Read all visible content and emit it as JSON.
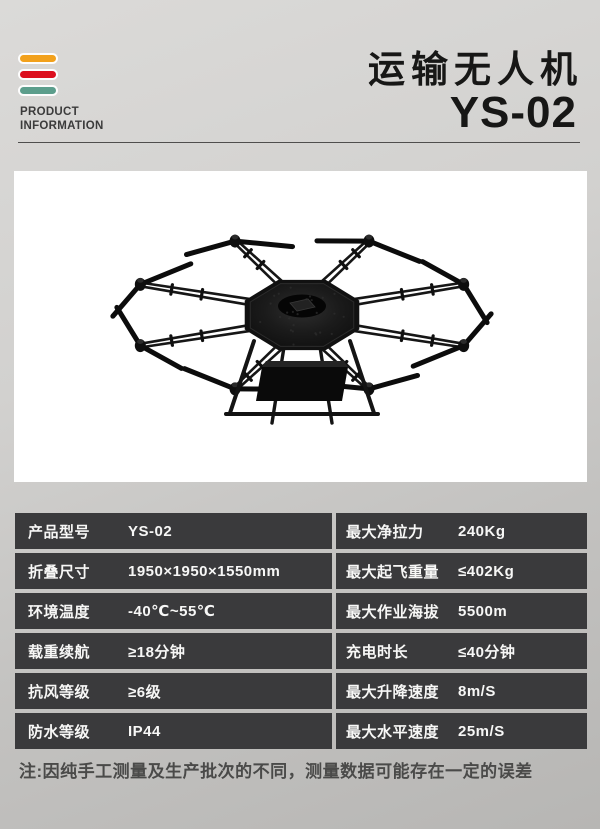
{
  "brand": {
    "line1": "PRODUCT",
    "line2": "INFORMATION",
    "stripe_colors": [
      "#F2A11C",
      "#DC0F1E",
      "#5C9E8C"
    ]
  },
  "header": {
    "title": "运输无人机",
    "model": "YS-02"
  },
  "product_image": {
    "description": "octocopter transport drone, top three-quarter view"
  },
  "spec_table": {
    "rows": [
      {
        "left_label": "产品型号",
        "left_value": "YS-02",
        "right_label": "最大净拉力",
        "right_value": "240Kg"
      },
      {
        "left_label": "折叠尺寸",
        "left_value": "1950×1950×1550mm",
        "right_label": "最大起飞重量",
        "right_value": "≤402Kg"
      },
      {
        "left_label": "环境温度",
        "left_value": "-40℃~55℃",
        "right_label": "最大作业海拔",
        "right_value": "5500m"
      },
      {
        "left_label": "载重续航",
        "left_value": "≥18分钟",
        "right_label": "充电时长",
        "right_value": "≤40分钟"
      },
      {
        "left_label": "抗风等级",
        "left_value": "≥6级",
        "right_label": "最大升降速度",
        "right_value": "8m/S"
      },
      {
        "left_label": "防水等级",
        "left_value": "IP44",
        "right_label": "最大水平速度",
        "right_value": "25m/S"
      }
    ]
  },
  "note": {
    "text": "注:因纯手工测量及生产批次的不同，测量数据可能存在一定的误差"
  },
  "colors": {
    "page_bg_top": "#dbdad8",
    "page_bg_bottom": "#b7b6b4",
    "row_bg": "#3a3a3c",
    "row_text": "#f7f7f6",
    "title_text": "#171716",
    "note_text": "#4a4a49",
    "panel_bg": "#ffffff"
  }
}
